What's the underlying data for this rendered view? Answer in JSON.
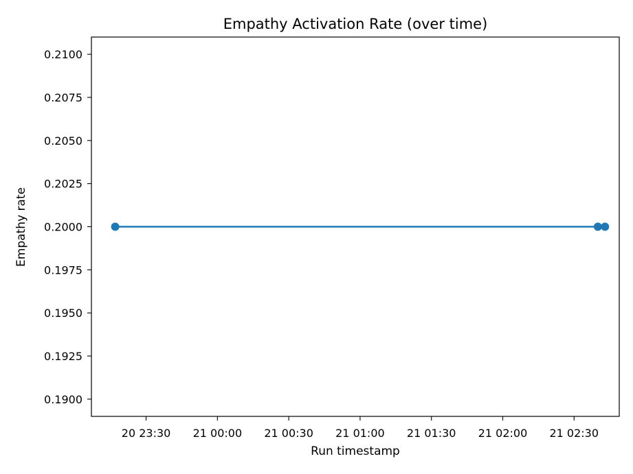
{
  "chart_data": {
    "type": "line",
    "title": "Empathy Activation Rate (over time)",
    "xlabel": "Run timestamp",
    "ylabel": "Empathy rate",
    "x_ticks": [
      {
        "t": "23:30",
        "label": "20 23:30"
      },
      {
        "t": "24:00",
        "label": "21 00:00"
      },
      {
        "t": "24:30",
        "label": "21 00:30"
      },
      {
        "t": "25:00",
        "label": "21 01:00"
      },
      {
        "t": "25:30",
        "label": "21 01:30"
      },
      {
        "t": "26:00",
        "label": "21 02:00"
      },
      {
        "t": "26:30",
        "label": "21 02:30"
      }
    ],
    "y_ticks": [
      {
        "value": 0.19,
        "label": "0.1900"
      },
      {
        "value": 0.1925,
        "label": "0.1925"
      },
      {
        "value": 0.195,
        "label": "0.1950"
      },
      {
        "value": 0.1975,
        "label": "0.1975"
      },
      {
        "value": 0.2,
        "label": "0.2000"
      },
      {
        "value": 0.2025,
        "label": "0.2025"
      },
      {
        "value": 0.205,
        "label": "0.2050"
      },
      {
        "value": 0.2075,
        "label": "0.2075"
      },
      {
        "value": 0.21,
        "label": "0.2100"
      }
    ],
    "xlim": [
      "23:07",
      "26:49"
    ],
    "ylim": [
      0.189,
      0.211
    ],
    "series": [
      {
        "color": "#1f77b4",
        "marker": "circle",
        "points": [
          {
            "t": "23:17",
            "y": 0.2
          },
          {
            "t": "26:40",
            "y": 0.2
          },
          {
            "t": "26:43",
            "y": 0.2
          }
        ]
      }
    ],
    "grid": false,
    "legend": false
  }
}
